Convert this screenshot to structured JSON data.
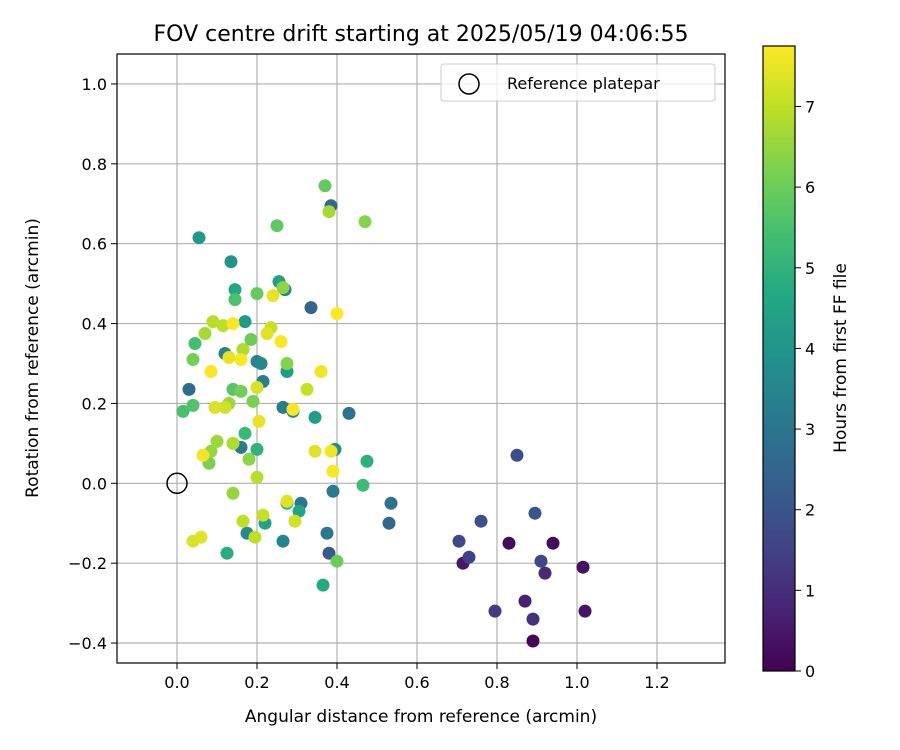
{
  "chart_data": {
    "type": "scatter",
    "title": "FOV centre drift starting at 2025/05/19 04:06:55",
    "xlabel": "Angular distance from reference (arcmin)",
    "ylabel": "Rotation from reference (arcmin)",
    "xlim": [
      -0.15,
      1.37
    ],
    "ylim": [
      -0.45,
      1.075
    ],
    "xticks": [
      "0.0",
      "0.2",
      "0.4",
      "0.6",
      "0.8",
      "1.0",
      "1.2"
    ],
    "xtick_values": [
      0.0,
      0.2,
      0.4,
      0.6,
      0.8,
      1.0,
      1.2
    ],
    "yticks": [
      "1.0",
      "0.8",
      "0.6",
      "0.4",
      "0.2",
      "0.0",
      "−0.2",
      "−0.4"
    ],
    "ytick_values": [
      1.0,
      0.8,
      0.6,
      0.4,
      0.2,
      0.0,
      -0.2,
      -0.4
    ],
    "grid": true,
    "legend": {
      "label": "Reference platepar",
      "placement": "top-right"
    },
    "reference_point": {
      "x": 0.0,
      "y": 0.0
    },
    "colorbar": {
      "label": "Hours from first FF file",
      "colormap": "viridis",
      "range": [
        0,
        7.75
      ],
      "ticks": [
        "0",
        "1",
        "2",
        "3",
        "4",
        "5",
        "6",
        "7"
      ],
      "tick_values": [
        0,
        1,
        2,
        3,
        4,
        5,
        6,
        7
      ]
    },
    "points": [
      {
        "x": 0.89,
        "y": -0.395,
        "h": 0.1
      },
      {
        "x": 0.83,
        "y": -0.15,
        "h": 0.2
      },
      {
        "x": 0.94,
        "y": -0.15,
        "h": 0.2
      },
      {
        "x": 1.015,
        "y": -0.21,
        "h": 0.3
      },
      {
        "x": 1.02,
        "y": -0.32,
        "h": 0.4
      },
      {
        "x": 0.715,
        "y": -0.2,
        "h": 0.5
      },
      {
        "x": 0.87,
        "y": -0.295,
        "h": 0.7
      },
      {
        "x": 0.92,
        "y": -0.225,
        "h": 0.9
      },
      {
        "x": 0.89,
        "y": -0.34,
        "h": 1.1
      },
      {
        "x": 0.795,
        "y": -0.32,
        "h": 1.3
      },
      {
        "x": 0.73,
        "y": -0.185,
        "h": 1.5
      },
      {
        "x": 0.91,
        "y": -0.195,
        "h": 1.6
      },
      {
        "x": 0.705,
        "y": -0.145,
        "h": 1.7
      },
      {
        "x": 0.85,
        "y": 0.07,
        "h": 1.8
      },
      {
        "x": 0.76,
        "y": -0.095,
        "h": 1.9
      },
      {
        "x": 0.895,
        "y": -0.075,
        "h": 2.1
      },
      {
        "x": 0.38,
        "y": -0.175,
        "h": 2.2
      },
      {
        "x": 0.53,
        "y": -0.1,
        "h": 2.6
      },
      {
        "x": 0.335,
        "y": 0.44,
        "h": 2.5
      },
      {
        "x": 0.385,
        "y": 0.695,
        "h": 2.6
      },
      {
        "x": 0.03,
        "y": 0.235,
        "h": 2.7
      },
      {
        "x": 0.535,
        "y": -0.05,
        "h": 2.9
      },
      {
        "x": 0.43,
        "y": 0.175,
        "h": 2.9
      },
      {
        "x": 0.31,
        "y": -0.05,
        "h": 3.0
      },
      {
        "x": 0.375,
        "y": -0.125,
        "h": 3.1
      },
      {
        "x": 0.39,
        "y": -0.02,
        "h": 3.2
      },
      {
        "x": 0.16,
        "y": 0.09,
        "h": 3.2
      },
      {
        "x": 0.215,
        "y": 0.255,
        "h": 3.3
      },
      {
        "x": 0.265,
        "y": 0.19,
        "h": 3.3
      },
      {
        "x": 0.2,
        "y": 0.305,
        "h": 3.4
      },
      {
        "x": 0.12,
        "y": 0.325,
        "h": 3.4
      },
      {
        "x": 0.265,
        "y": -0.145,
        "h": 3.5
      },
      {
        "x": 0.27,
        "y": 0.485,
        "h": 3.5
      },
      {
        "x": 0.21,
        "y": 0.3,
        "h": 3.6
      },
      {
        "x": 0.175,
        "y": -0.125,
        "h": 3.7
      },
      {
        "x": 0.29,
        "y": 0.18,
        "h": 3.7
      },
      {
        "x": 0.395,
        "y": 0.085,
        "h": 3.8
      },
      {
        "x": 0.135,
        "y": 0.555,
        "h": 4.0
      },
      {
        "x": 0.055,
        "y": 0.615,
        "h": 4.1
      },
      {
        "x": 0.17,
        "y": 0.405,
        "h": 4.2
      },
      {
        "x": 0.345,
        "y": 0.165,
        "h": 4.3
      },
      {
        "x": 0.275,
        "y": 0.28,
        "h": 4.3
      },
      {
        "x": 0.255,
        "y": 0.505,
        "h": 4.4
      },
      {
        "x": 0.22,
        "y": -0.1,
        "h": 4.4
      },
      {
        "x": 0.305,
        "y": -0.07,
        "h": 4.5
      },
      {
        "x": 0.145,
        "y": 0.485,
        "h": 4.6
      },
      {
        "x": 0.365,
        "y": -0.255,
        "h": 4.7
      },
      {
        "x": 0.125,
        "y": -0.175,
        "h": 4.8
      },
      {
        "x": 0.475,
        "y": 0.055,
        "h": 4.9
      },
      {
        "x": 0.2,
        "y": 0.085,
        "h": 5.0
      },
      {
        "x": 0.275,
        "y": -0.05,
        "h": 5.1
      },
      {
        "x": 0.17,
        "y": 0.125,
        "h": 5.2
      },
      {
        "x": 0.465,
        "y": -0.005,
        "h": 5.3
      },
      {
        "x": 0.045,
        "y": 0.35,
        "h": 5.4
      },
      {
        "x": 0.015,
        "y": 0.18,
        "h": 5.5
      },
      {
        "x": 0.145,
        "y": 0.46,
        "h": 5.5
      },
      {
        "x": 0.04,
        "y": 0.195,
        "h": 5.6
      },
      {
        "x": 0.14,
        "y": 0.235,
        "h": 5.7
      },
      {
        "x": 0.25,
        "y": 0.645,
        "h": 5.8
      },
      {
        "x": 0.37,
        "y": 0.745,
        "h": 5.9
      },
      {
        "x": 0.2,
        "y": 0.475,
        "h": 5.9
      },
      {
        "x": 0.185,
        "y": 0.36,
        "h": 6.0
      },
      {
        "x": 0.4,
        "y": -0.195,
        "h": 6.0
      },
      {
        "x": 0.16,
        "y": 0.23,
        "h": 6.1
      },
      {
        "x": 0.04,
        "y": 0.31,
        "h": 6.1
      },
      {
        "x": 0.08,
        "y": 0.05,
        "h": 6.2
      },
      {
        "x": 0.19,
        "y": 0.205,
        "h": 6.2
      },
      {
        "x": 0.275,
        "y": 0.3,
        "h": 6.3
      },
      {
        "x": 0.47,
        "y": 0.655,
        "h": 6.3
      },
      {
        "x": 0.265,
        "y": 0.49,
        "h": 6.4
      },
      {
        "x": 0.18,
        "y": 0.06,
        "h": 6.4
      },
      {
        "x": 0.14,
        "y": -0.025,
        "h": 6.5
      },
      {
        "x": 0.085,
        "y": 0.08,
        "h": 6.5
      },
      {
        "x": 0.13,
        "y": 0.2,
        "h": 6.6
      },
      {
        "x": 0.1,
        "y": 0.105,
        "h": 6.6
      },
      {
        "x": 0.38,
        "y": 0.68,
        "h": 6.7
      },
      {
        "x": 0.07,
        "y": 0.375,
        "h": 6.7
      },
      {
        "x": 0.165,
        "y": 0.335,
        "h": 6.8
      },
      {
        "x": 0.14,
        "y": 0.1,
        "h": 6.8
      },
      {
        "x": 0.09,
        "y": 0.405,
        "h": 6.9
      },
      {
        "x": 0.2,
        "y": 0.015,
        "h": 6.9
      },
      {
        "x": 0.165,
        "y": -0.095,
        "h": 7.0
      },
      {
        "x": 0.195,
        "y": -0.135,
        "h": 7.0
      },
      {
        "x": 0.115,
        "y": 0.395,
        "h": 7.0
      },
      {
        "x": 0.215,
        "y": -0.08,
        "h": 7.1
      },
      {
        "x": 0.325,
        "y": 0.235,
        "h": 7.1
      },
      {
        "x": 0.235,
        "y": 0.39,
        "h": 7.1
      },
      {
        "x": 0.295,
        "y": -0.095,
        "h": 7.2
      },
      {
        "x": 0.12,
        "y": 0.19,
        "h": 7.2
      },
      {
        "x": 0.095,
        "y": 0.19,
        "h": 7.3
      },
      {
        "x": 0.2,
        "y": 0.24,
        "h": 7.3
      },
      {
        "x": 0.04,
        "y": -0.145,
        "h": 7.3
      },
      {
        "x": 0.06,
        "y": -0.135,
        "h": 7.4
      },
      {
        "x": 0.345,
        "y": 0.08,
        "h": 7.4
      },
      {
        "x": 0.225,
        "y": 0.375,
        "h": 7.4
      },
      {
        "x": 0.275,
        "y": -0.045,
        "h": 7.4
      },
      {
        "x": 0.205,
        "y": 0.155,
        "h": 7.5
      },
      {
        "x": 0.24,
        "y": 0.47,
        "h": 7.5
      },
      {
        "x": 0.13,
        "y": 0.315,
        "h": 7.5
      },
      {
        "x": 0.065,
        "y": 0.07,
        "h": 7.6
      },
      {
        "x": 0.385,
        "y": 0.08,
        "h": 7.6
      },
      {
        "x": 0.36,
        "y": 0.28,
        "h": 7.6
      },
      {
        "x": 0.39,
        "y": 0.03,
        "h": 7.7
      },
      {
        "x": 0.14,
        "y": 0.4,
        "h": 7.7
      },
      {
        "x": 0.16,
        "y": 0.31,
        "h": 7.7
      },
      {
        "x": 0.26,
        "y": 0.355,
        "h": 7.7
      },
      {
        "x": 0.085,
        "y": 0.28,
        "h": 7.7
      },
      {
        "x": 0.29,
        "y": 0.185,
        "h": 7.7
      },
      {
        "x": 0.4,
        "y": 0.425,
        "h": 7.75
      }
    ]
  }
}
